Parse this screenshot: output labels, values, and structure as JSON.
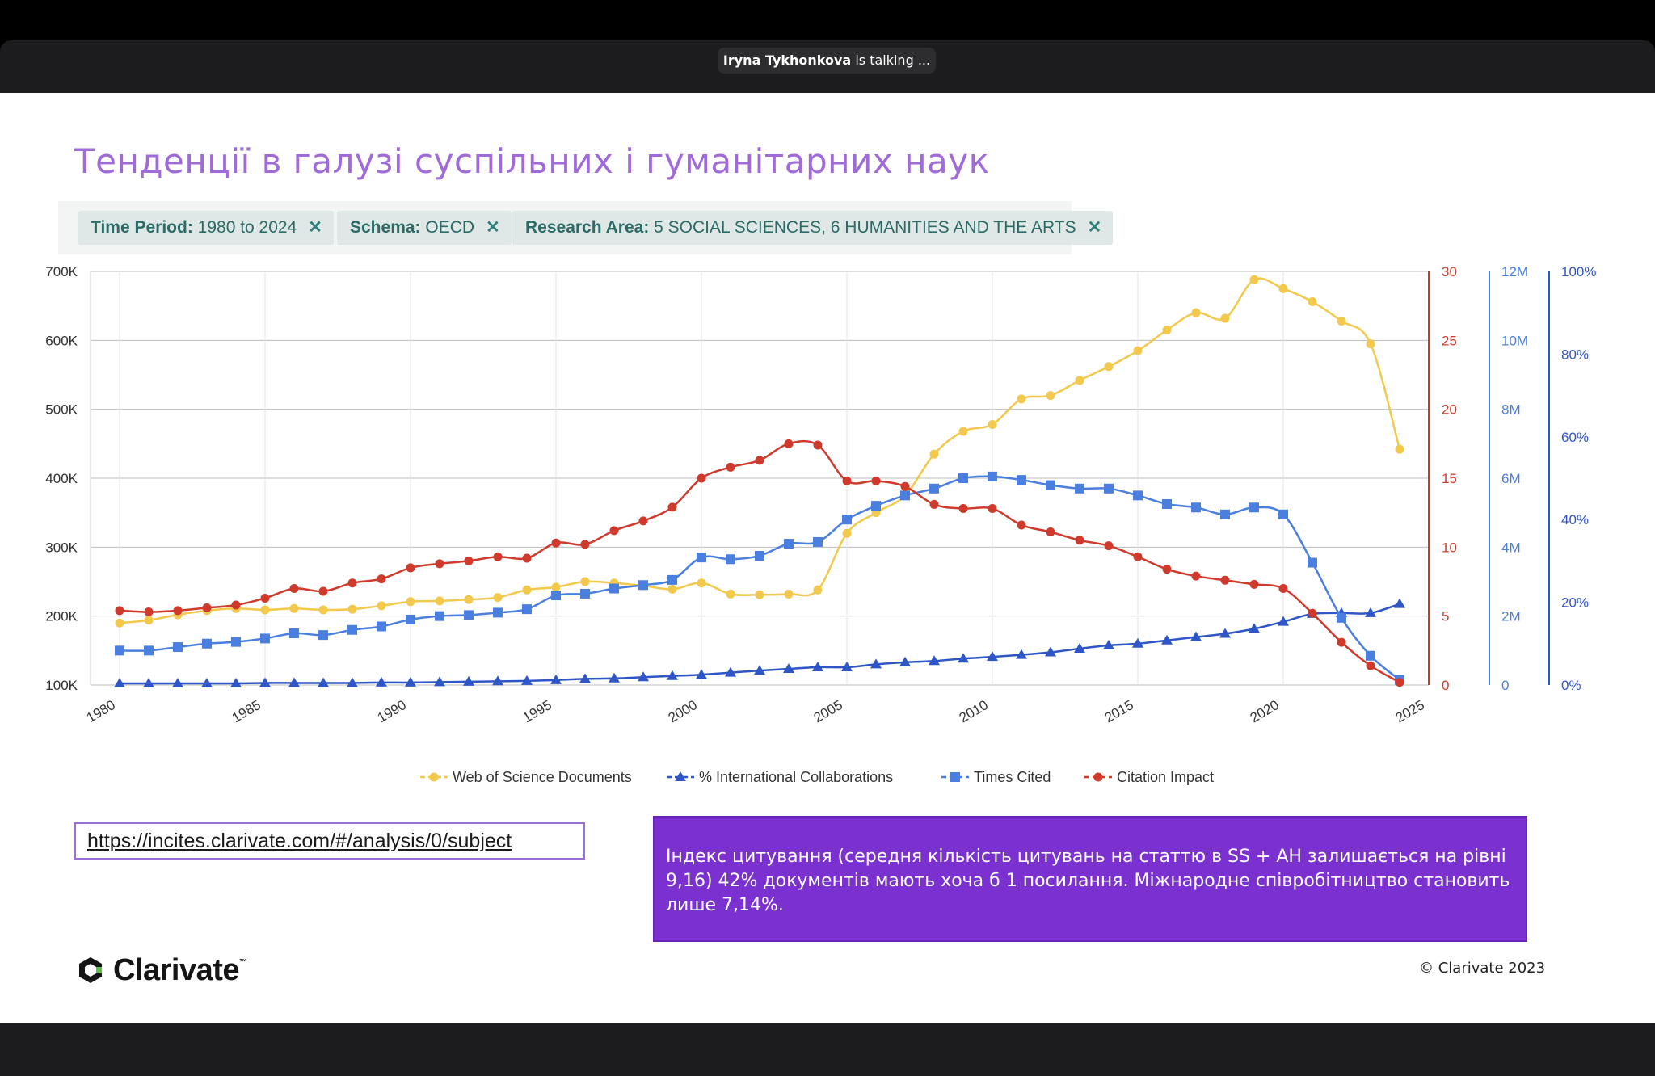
{
  "call": {
    "speaker": "Iryna Tykhonkova",
    "status": "is talking ..."
  },
  "slide": {
    "title": "Тенденції в галузі суспільних і гуманітарних наук",
    "filters": [
      {
        "label": "Time Period:",
        "value": "1980 to 2024"
      },
      {
        "label": "Schema:",
        "value": "OECD"
      },
      {
        "label": "Research Area:",
        "value": "5 SOCIAL SCIENCES, 6 HUMANITIES AND THE ARTS"
      }
    ],
    "url": "https://incites.clarivate.com/#/analysis/0/subject",
    "note": "Індекс цитування (середня кількість цитувань на статтю в SS + AH залишається на рівні 9,16) 42% документів мають хоча б 1 посилання. Міжнародне співробітництво становить лише 7,14%.",
    "logo": "Clarivate",
    "logo_tm": "™",
    "copyright": "© Clarivate 2023"
  },
  "icons": {
    "close": "close-icon",
    "logo": "clarivate-logo-icon"
  },
  "colors": {
    "documents": "#f2c94c",
    "collab": "#2f56c6",
    "times_cited": "#4a7fe0",
    "impact": "#cf3a2c",
    "title": "#a06ad9",
    "note_bg": "#7b31cf"
  },
  "chart_data": {
    "type": "line",
    "x": [
      1980,
      1981,
      1982,
      1983,
      1984,
      1985,
      1986,
      1987,
      1988,
      1989,
      1990,
      1991,
      1992,
      1993,
      1994,
      1995,
      1996,
      1997,
      1998,
      1999,
      2000,
      2001,
      2002,
      2003,
      2004,
      2005,
      2006,
      2007,
      2008,
      2009,
      2010,
      2011,
      2012,
      2013,
      2014,
      2015,
      2016,
      2017,
      2018,
      2019,
      2020,
      2021,
      2022,
      2023,
      2024
    ],
    "xlim": [
      1979,
      2025
    ],
    "x_ticks": [
      "1980",
      "1985",
      "1990",
      "1995",
      "2000",
      "2005",
      "2010",
      "2015",
      "2020",
      "2025"
    ],
    "axes": {
      "left": {
        "range": [
          100000,
          700000
        ],
        "ticks": [
          "100K",
          "200K",
          "300K",
          "400K",
          "500K",
          "600K",
          "700K"
        ]
      },
      "impact": {
        "range": [
          0,
          30
        ],
        "ticks": [
          "0",
          "5",
          "10",
          "15",
          "20",
          "25",
          "30"
        ]
      },
      "cited": {
        "range": [
          0,
          12000000
        ],
        "ticks": [
          "0",
          "2M",
          "4M",
          "6M",
          "8M",
          "10M",
          "12M"
        ]
      },
      "percent": {
        "range": [
          0,
          100
        ],
        "ticks": [
          "0%",
          "20%",
          "40%",
          "60%",
          "80%",
          "100%"
        ]
      }
    },
    "grid": true,
    "legend_position": "bottom",
    "series": [
      {
        "name": "Web of Science Documents",
        "axis": "left",
        "marker": "circle",
        "values": [
          190000,
          194000,
          202000,
          208000,
          211000,
          209000,
          211000,
          209000,
          210000,
          215000,
          221000,
          222000,
          224000,
          227000,
          238000,
          242000,
          250000,
          248000,
          244000,
          239000,
          248000,
          232000,
          231000,
          232000,
          238000,
          320000,
          350000,
          375000,
          435000,
          468000,
          478000,
          515000,
          520000,
          542000,
          562000,
          585000,
          615000,
          640000,
          632000,
          688000,
          675000,
          656000,
          628000,
          595000,
          442000
        ]
      },
      {
        "name": "% International Collaborations",
        "axis": "percent",
        "marker": "triangle",
        "values": [
          0.4,
          0.4,
          0.4,
          0.4,
          0.4,
          0.5,
          0.5,
          0.5,
          0.5,
          0.6,
          0.6,
          0.7,
          0.8,
          0.9,
          1.0,
          1.2,
          1.5,
          1.6,
          1.9,
          2.2,
          2.5,
          3.0,
          3.5,
          3.9,
          4.3,
          4.3,
          5.0,
          5.5,
          5.8,
          6.4,
          6.8,
          7.3,
          7.9,
          8.8,
          9.6,
          10.0,
          10.8,
          11.6,
          12.4,
          13.6,
          15.3,
          17.2,
          17.4,
          17.4,
          19.6
        ]
      },
      {
        "name": "Times Cited",
        "axis": "cited",
        "marker": "square",
        "values": [
          1000000,
          1000000,
          1100000,
          1200000,
          1250000,
          1350000,
          1500000,
          1450000,
          1600000,
          1700000,
          1900000,
          2000000,
          2030000,
          2100000,
          2200000,
          2600000,
          2650000,
          2800000,
          2900000,
          3050000,
          3700000,
          3650000,
          3750000,
          4100000,
          4150000,
          4800000,
          5200000,
          5500000,
          5700000,
          6000000,
          6050000,
          5950000,
          5800000,
          5700000,
          5700000,
          5500000,
          5250000,
          5150000,
          4950000,
          5150000,
          4950000,
          3550000,
          1950000,
          850000,
          150000
        ]
      },
      {
        "name": "Citation Impact",
        "axis": "impact",
        "marker": "circle",
        "values": [
          5.4,
          5.3,
          5.4,
          5.6,
          5.8,
          6.3,
          7.0,
          6.8,
          7.4,
          7.7,
          8.5,
          8.8,
          9.0,
          9.3,
          9.2,
          10.3,
          10.2,
          11.2,
          11.9,
          12.9,
          15.0,
          15.8,
          16.3,
          17.5,
          17.4,
          14.8,
          14.8,
          14.4,
          13.1,
          12.8,
          12.8,
          11.6,
          11.1,
          10.5,
          10.1,
          9.3,
          8.4,
          7.9,
          7.6,
          7.3,
          7.0,
          5.2,
          3.1,
          1.4,
          0.2
        ]
      }
    ]
  }
}
